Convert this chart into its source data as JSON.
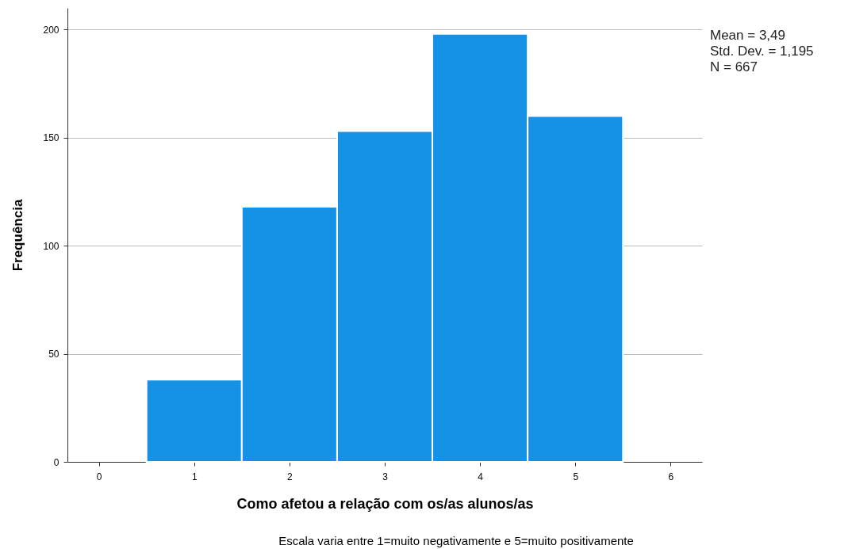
{
  "chart_data": {
    "type": "histogram",
    "xlabel": "Como afetou a relação com os/as alunos/as",
    "ylabel": "Frequência",
    "bins": [
      0.5,
      1.5,
      2.5,
      3.5,
      4.5,
      5.5
    ],
    "values": [
      38,
      118,
      153,
      198,
      160
    ],
    "color": "#1591e6",
    "xlim": [
      -0.33,
      6.33
    ],
    "xticks": [
      0,
      1,
      2,
      3,
      4,
      5,
      6
    ],
    "ylim": [
      0,
      210
    ],
    "yticks": [
      0,
      50,
      100,
      150,
      200
    ],
    "grid": "y",
    "annotations": [
      "Mean = 3,49",
      "Std. Dev. = 1,195",
      "N = 667",
      "Escala varia entre 1=muito negativamente e 5=muito positivamente"
    ]
  }
}
